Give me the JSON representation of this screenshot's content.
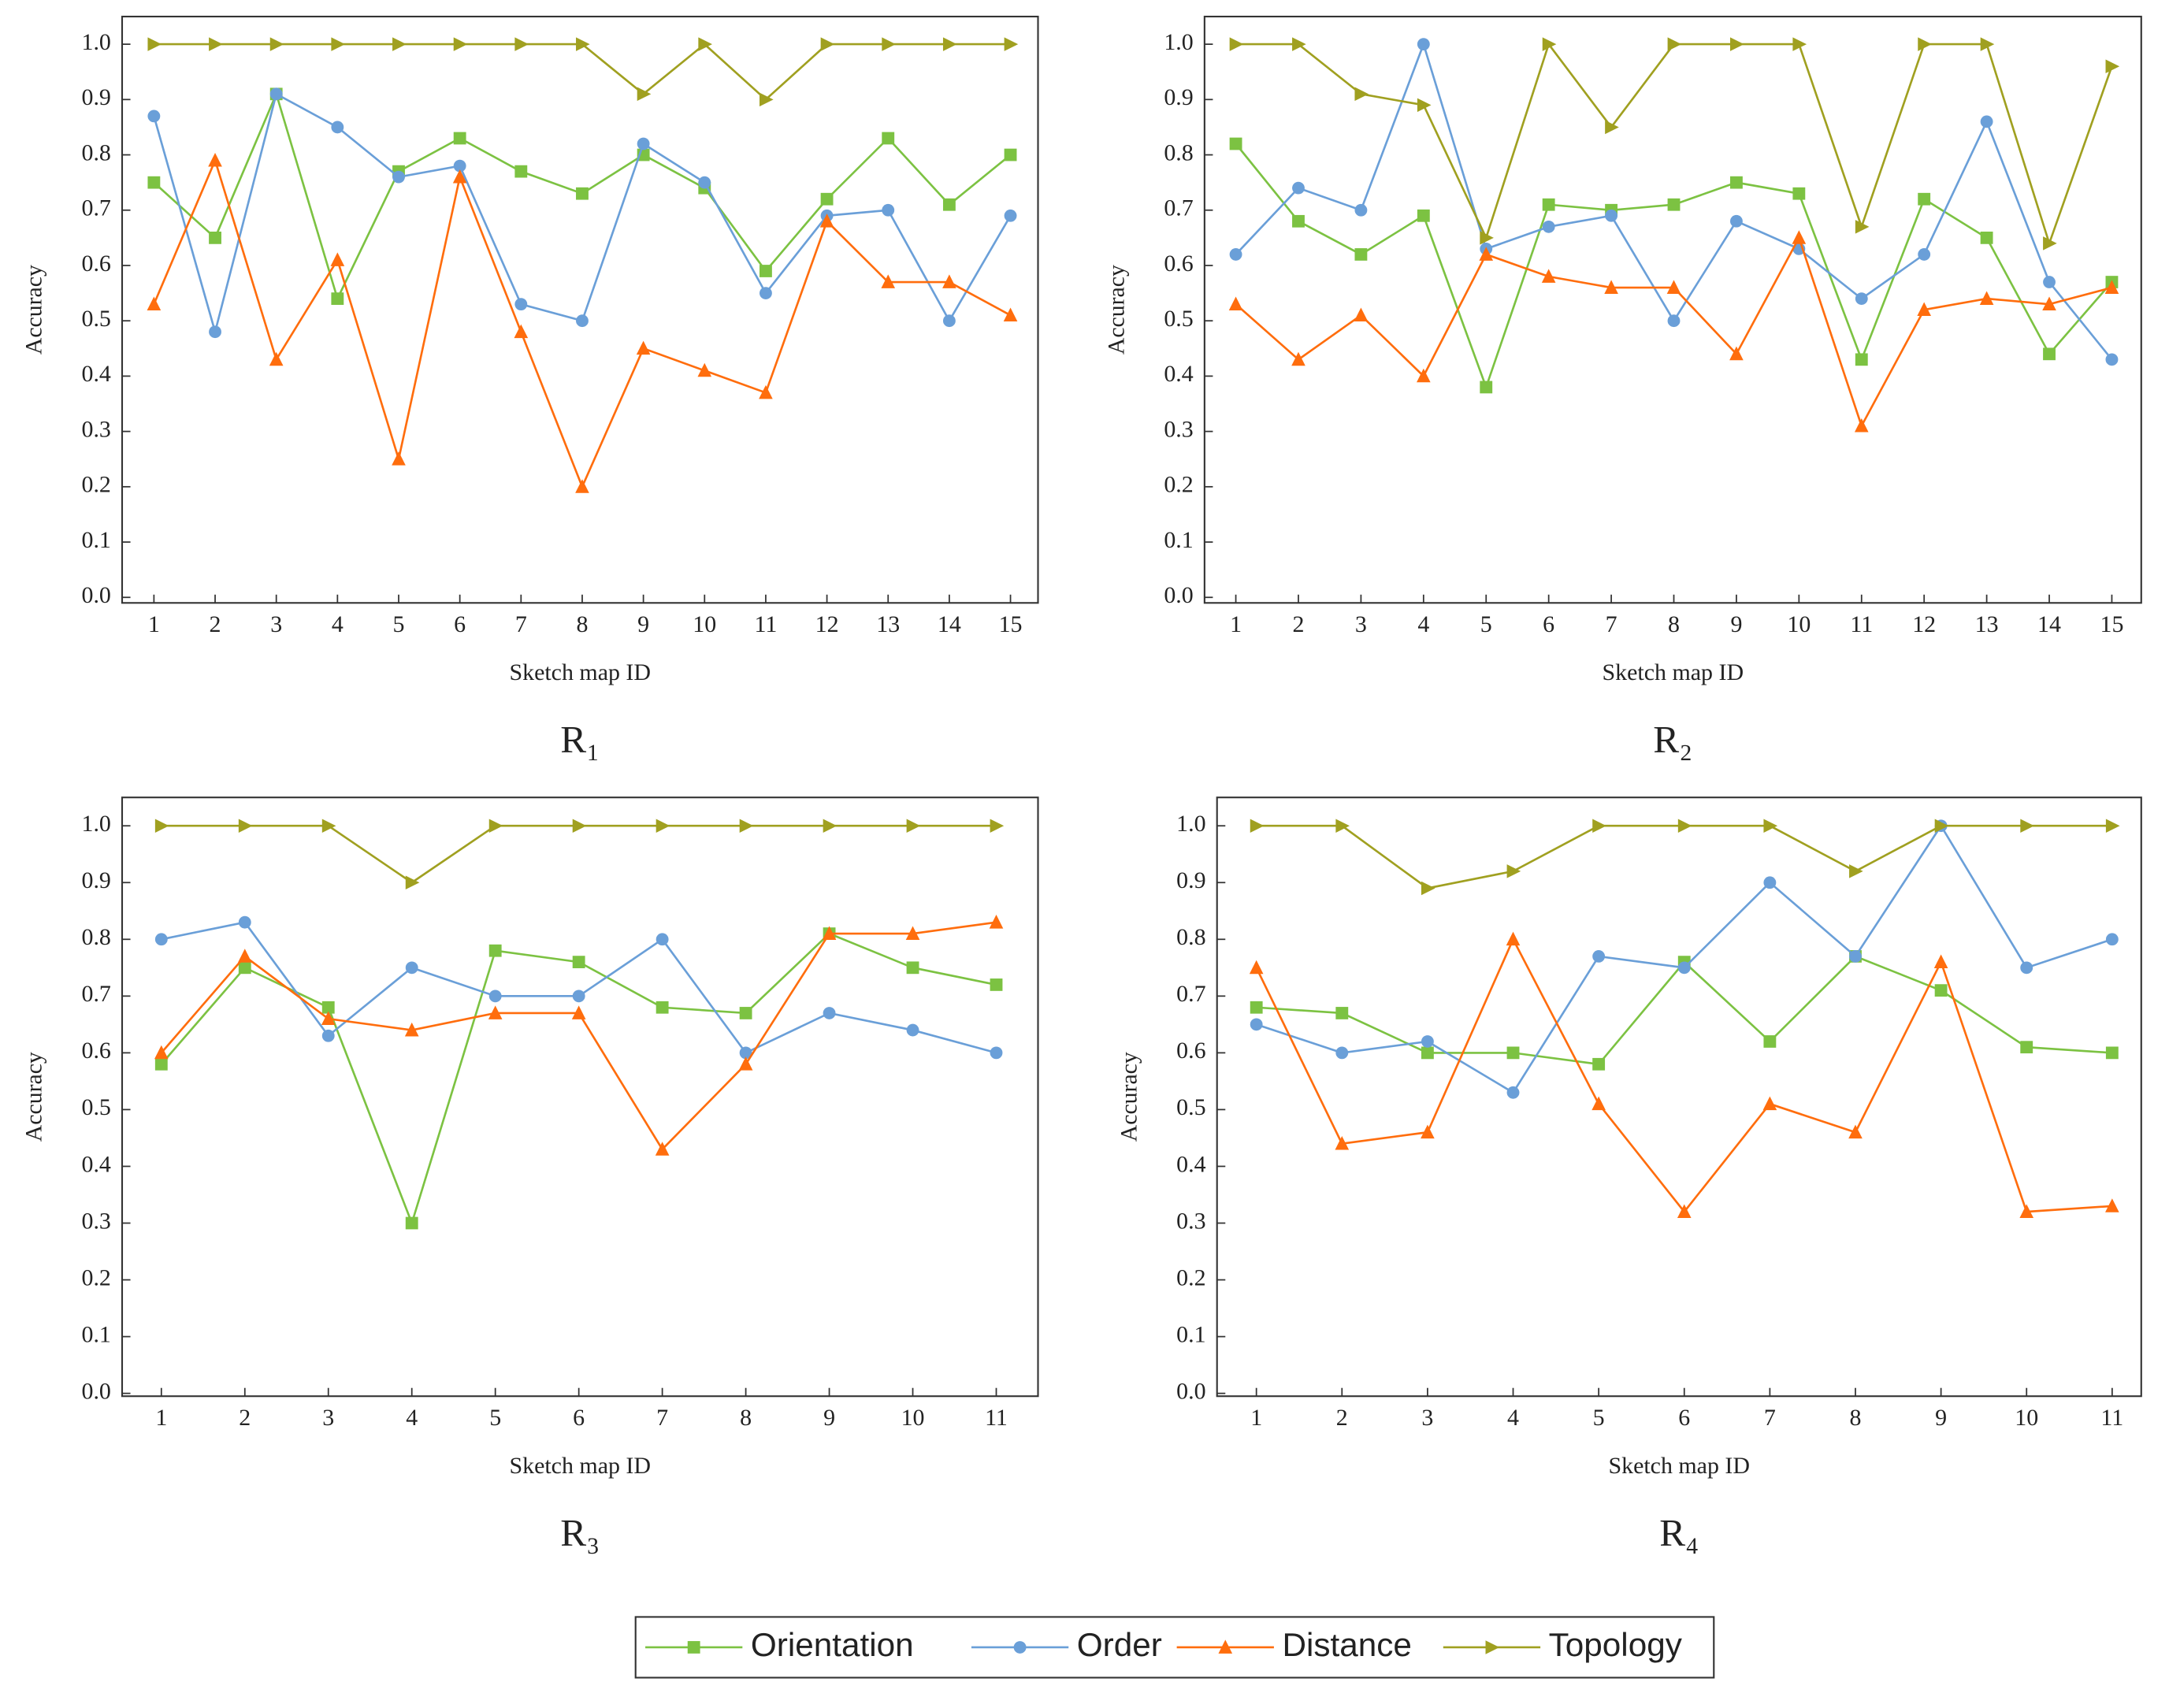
{
  "legend": [
    {
      "name": "Orientation",
      "color": "#7cc242",
      "marker": "square"
    },
    {
      "name": "Order",
      "color": "#6a9fd8",
      "marker": "circle"
    },
    {
      "name": "Distance",
      "color": "#ff6d0d",
      "marker": "triangle"
    },
    {
      "name": "Topology",
      "color": "#a0a020",
      "marker": "tri-right"
    }
  ],
  "chart_data": [
    {
      "type": "line",
      "subtitle": "R₁",
      "x_label": "Sketch map ID",
      "y_label": "Accuracy",
      "x": [
        1,
        2,
        3,
        4,
        5,
        6,
        7,
        8,
        9,
        10,
        11,
        12,
        13,
        14,
        15
      ],
      "xlim": [
        0.48,
        15.45
      ],
      "ylim": [
        -0.01,
        1.05
      ],
      "yticks": [
        {
          "value": 0,
          "label": "0.0"
        },
        0.1,
        0.2,
        0.3,
        0.4,
        0.5,
        0.6,
        0.7,
        0.8,
        0.9,
        {
          "value": 1,
          "label": "1.0"
        }
      ],
      "series": [
        {
          "values": [
            0.75,
            0.65,
            0.91,
            0.54,
            0.77,
            0.83,
            0.77,
            0.73,
            0.8,
            0.74,
            0.59,
            0.72,
            0.83,
            0.71,
            0.8
          ]
        },
        {
          "values": [
            0.87,
            0.48,
            0.91,
            0.85,
            0.76,
            0.78,
            0.53,
            0.5,
            0.82,
            0.75,
            0.55,
            0.69,
            0.7,
            0.5,
            0.69
          ]
        },
        {
          "values": [
            0.53,
            0.79,
            0.43,
            0.61,
            0.25,
            0.76,
            0.48,
            0.2,
            0.45,
            0.41,
            0.37,
            0.68,
            0.57,
            0.57,
            0.51
          ]
        },
        {
          "values": [
            1,
            1,
            1,
            1,
            1,
            1,
            1,
            1,
            0.91,
            1,
            0.9,
            1,
            1,
            1,
            1
          ]
        }
      ]
    },
    {
      "type": "line",
      "subtitle": "R₂",
      "x_label": "Sketch map ID",
      "y_label": "Accuracy",
      "x": [
        1,
        2,
        3,
        4,
        5,
        6,
        7,
        8,
        9,
        10,
        11,
        12,
        13,
        14,
        15
      ],
      "xlim": [
        0.5,
        15.47
      ],
      "ylim": [
        -0.01,
        1.05
      ],
      "yticks": [
        {
          "value": 0,
          "label": "0.0"
        },
        0.1,
        0.2,
        0.3,
        0.4,
        0.5,
        0.6,
        0.7,
        0.8,
        0.9,
        {
          "value": 1,
          "label": "1.0"
        }
      ],
      "series": [
        {
          "values": [
            0.82,
            0.68,
            0.62,
            0.69,
            0.38,
            0.71,
            0.7,
            0.71,
            0.75,
            0.73,
            0.43,
            0.72,
            0.65,
            0.44,
            0.57
          ]
        },
        {
          "values": [
            0.62,
            0.74,
            0.7,
            1.0,
            0.63,
            0.67,
            0.69,
            0.5,
            0.68,
            0.63,
            0.54,
            0.62,
            0.86,
            0.57,
            0.43
          ]
        },
        {
          "values": [
            0.53,
            0.43,
            0.51,
            0.4,
            0.62,
            0.58,
            0.56,
            0.56,
            0.44,
            0.65,
            0.31,
            0.52,
            0.54,
            0.53,
            0.56
          ]
        },
        {
          "values": [
            1,
            1,
            0.91,
            0.89,
            0.65,
            1,
            0.85,
            1,
            1,
            1,
            0.67,
            1,
            1,
            0.64,
            0.96
          ]
        }
      ]
    },
    {
      "type": "line",
      "subtitle": "R₃",
      "x_label": "Sketch map ID",
      "y_label": "Accuracy",
      "x": [
        1,
        2,
        3,
        4,
        5,
        6,
        7,
        8,
        9,
        10,
        11
      ],
      "xlim": [
        0.53,
        11.5
      ],
      "ylim": [
        -0.005,
        1.05
      ],
      "yticks": [
        {
          "value": 0,
          "label": "0.0"
        },
        0.1,
        0.2,
        0.3,
        0.4,
        0.5,
        0.6,
        0.7,
        0.8,
        0.9,
        {
          "value": 1,
          "label": "1.0"
        }
      ],
      "series": [
        {
          "values": [
            0.58,
            0.75,
            0.68,
            0.3,
            0.78,
            0.76,
            0.68,
            0.67,
            0.81,
            0.75,
            0.72
          ]
        },
        {
          "values": [
            0.8,
            0.83,
            0.63,
            0.75,
            0.7,
            0.7,
            0.8,
            0.6,
            0.67,
            0.64,
            0.6
          ]
        },
        {
          "values": [
            0.6,
            0.77,
            0.66,
            0.64,
            0.67,
            0.67,
            0.43,
            0.58,
            0.81,
            0.81,
            0.83
          ]
        },
        {
          "values": [
            1,
            1,
            1,
            0.9,
            1,
            1,
            1,
            1,
            1,
            1,
            1
          ]
        }
      ]
    },
    {
      "type": "line",
      "subtitle": "R₄",
      "x_label": "Sketch map ID",
      "y_label": "Accuracy",
      "x": [
        1,
        2,
        3,
        4,
        5,
        6,
        7,
        8,
        9,
        10,
        11
      ],
      "xlim": [
        0.54,
        11.34
      ],
      "ylim": [
        -0.005,
        1.05
      ],
      "yticks": [
        {
          "value": 0,
          "label": "0.0"
        },
        0.1,
        0.2,
        0.3,
        0.4,
        0.5,
        0.6,
        0.7,
        0.8,
        0.9,
        {
          "value": 1,
          "label": "1.0"
        }
      ],
      "series": [
        {
          "values": [
            0.68,
            0.67,
            0.6,
            0.6,
            0.58,
            0.76,
            0.62,
            0.77,
            0.71,
            0.61,
            0.6
          ]
        },
        {
          "values": [
            0.65,
            0.6,
            0.62,
            0.53,
            0.77,
            0.75,
            0.9,
            0.77,
            1.0,
            0.75,
            0.8
          ]
        },
        {
          "values": [
            0.75,
            0.44,
            0.46,
            0.8,
            0.51,
            0.32,
            0.51,
            0.46,
            0.76,
            0.32,
            0.33
          ]
        },
        {
          "values": [
            1,
            1,
            0.89,
            0.92,
            1,
            1,
            1,
            0.92,
            1,
            1,
            1
          ]
        }
      ]
    }
  ]
}
